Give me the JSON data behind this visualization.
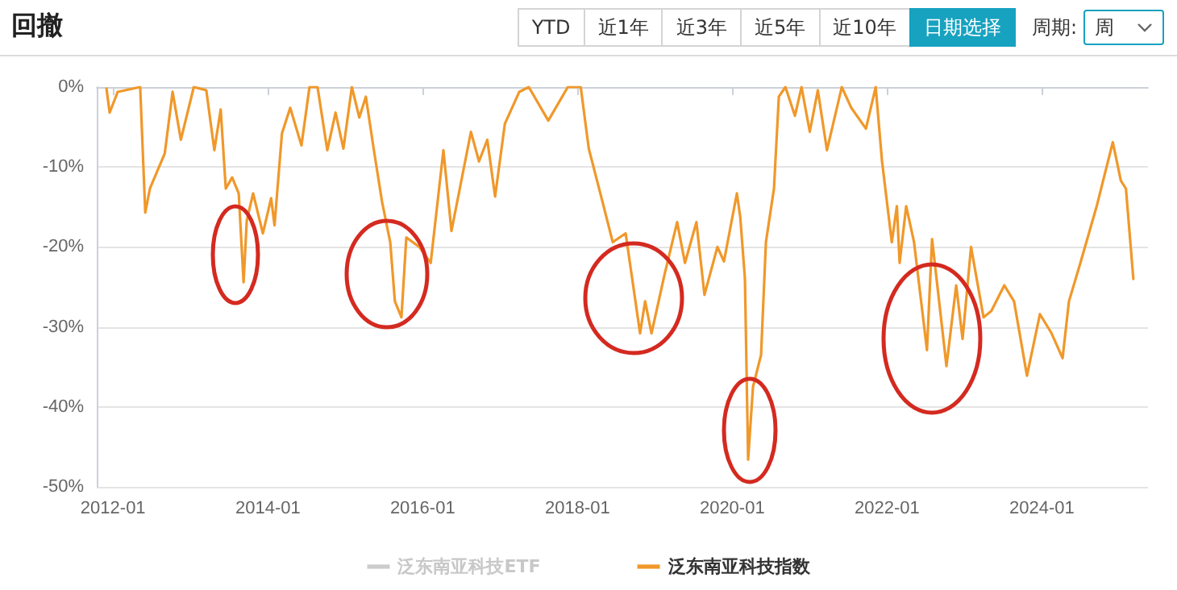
{
  "chart_data": {
    "type": "line",
    "title": "回撤",
    "annotations": [
      "YTD",
      "近1年",
      "近3年",
      "近5年",
      "近10年",
      "日期选择",
      "周期:",
      "周"
    ],
    "xlim": [
      "2011-10-16",
      "2025-05-16"
    ],
    "xticks": [
      "2012-01",
      "2014-01",
      "2016-01",
      "2018-01",
      "2020-01",
      "2022-01",
      "2024-01"
    ],
    "ylim": [
      -50,
      0
    ],
    "yticks": [
      {
        "value": -50,
        "label": "-50%"
      },
      {
        "value": -40,
        "label": "-40%"
      },
      {
        "value": -30,
        "label": "-30%"
      },
      {
        "value": -20,
        "label": "-20%"
      },
      {
        "value": -10,
        "label": "-10%"
      },
      {
        "value": 0,
        "label": "0%"
      }
    ],
    "grid": "y",
    "legend": "bottom",
    "marker": "none",
    "line_style": "solid",
    "x": [
      "2011-12-01",
      "2011-12-16",
      "2012-01-23",
      "2012-05-08",
      "2012-06-01",
      "2012-06-23",
      "2012-09-01",
      "2012-10-08",
      "2012-11-16",
      "2013-01-16",
      "2013-03-16",
      "2013-04-23",
      "2013-05-23",
      "2013-06-16",
      "2013-07-16",
      "2013-08-16",
      "2013-09-08",
      "2013-09-23",
      "2013-10-23",
      "2013-12-08",
      "2014-01-16",
      "2014-02-01",
      "2014-03-08",
      "2014-04-16",
      "2014-06-08",
      "2014-07-16",
      "2014-08-23",
      "2014-10-08",
      "2014-11-16",
      "2014-12-23",
      "2015-02-01",
      "2015-03-08",
      "2015-04-08",
      "2015-05-16",
      "2015-06-23",
      "2015-08-01",
      "2015-08-23",
      "2015-09-23",
      "2015-10-16",
      "2015-12-16",
      "2016-02-08",
      "2016-04-08",
      "2016-05-16",
      "2016-08-16",
      "2016-09-23",
      "2016-11-01",
      "2016-12-08",
      "2017-01-23",
      "2017-04-01",
      "2017-05-16",
      "2017-08-16",
      "2017-11-16",
      "2018-01-16",
      "2018-02-23",
      "2018-05-08",
      "2018-06-16",
      "2018-08-16",
      "2018-10-23",
      "2018-11-16",
      "2018-12-16",
      "2019-02-16",
      "2019-04-16",
      "2019-05-23",
      "2019-07-16",
      "2019-08-23",
      "2019-10-23",
      "2019-11-23",
      "2020-01-23",
      "2020-02-08",
      "2020-03-01",
      "2020-03-16",
      "2020-04-08",
      "2020-05-16",
      "2020-06-08",
      "2020-07-16",
      "2020-08-08",
      "2020-09-08",
      "2020-10-23",
      "2020-11-23",
      "2021-01-01",
      "2021-02-08",
      "2021-03-23",
      "2021-06-01",
      "2021-07-16",
      "2021-09-23",
      "2021-11-08",
      "2021-12-08",
      "2022-01-23",
      "2022-02-16",
      "2022-03-01",
      "2022-04-01",
      "2022-05-08",
      "2022-07-08",
      "2022-08-01",
      "2022-10-08",
      "2022-11-23",
      "2022-12-23",
      "2023-02-01",
      "2023-04-01",
      "2023-05-08",
      "2023-07-08",
      "2023-08-23",
      "2023-10-23",
      "2023-12-23",
      "2024-02-16",
      "2024-04-08",
      "2024-05-08",
      "2024-07-01",
      "2024-09-16",
      "2024-12-01",
      "2025-01-08",
      "2025-02-01",
      "2025-03-08"
    ],
    "series": [
      {
        "name": "泛东南亚科技ETF",
        "color": "#cccccc",
        "values": [
          null,
          null,
          null,
          null,
          null,
          null,
          null,
          null,
          null,
          null,
          null,
          null,
          null,
          null,
          null,
          null,
          null,
          null,
          null,
          null,
          null,
          null,
          null,
          null,
          null,
          null,
          null,
          null,
          null,
          null,
          null,
          null,
          null,
          null,
          null,
          null,
          null,
          null,
          null,
          null,
          null,
          null,
          null,
          null,
          null,
          null,
          null,
          null,
          null,
          null,
          null,
          null,
          null,
          null,
          null,
          null,
          null,
          null,
          null,
          null,
          null,
          null,
          null,
          null,
          null,
          null,
          null,
          null,
          null,
          null,
          null,
          null,
          null,
          null,
          null,
          null,
          null,
          null,
          null,
          null,
          null,
          null,
          null,
          null,
          null,
          null,
          null,
          null,
          null,
          null,
          null,
          null,
          null,
          null,
          null,
          null,
          null,
          null,
          null,
          null,
          null,
          null,
          null,
          null,
          null,
          null,
          null,
          null,
          null,
          null,
          null,
          null,
          null
        ]
      },
      {
        "name": "泛东南亚科技指数",
        "color": "#f0982a",
        "values": [
          -0.2,
          -3.2,
          -0.6,
          0,
          -15.7,
          -12.7,
          -8.3,
          -0.6,
          -6.6,
          0,
          -0.4,
          -7.9,
          -2.8,
          -12.7,
          -11.3,
          -13.3,
          -24.4,
          -16.7,
          -13.3,
          -18.3,
          -13.9,
          -17.3,
          -5.8,
          -2.6,
          -7.3,
          0,
          0,
          -7.9,
          -3.2,
          -7.7,
          0,
          -3.8,
          -1.2,
          -7.9,
          -14.3,
          -19.4,
          -26.8,
          -28.8,
          -18.8,
          -20,
          -22,
          -7.9,
          -18,
          -5.6,
          -9.3,
          -6.6,
          -13.7,
          -4.6,
          -0.6,
          0,
          -4.2,
          0,
          0,
          -7.7,
          -15.3,
          -19.4,
          -18.3,
          -30.8,
          -26.8,
          -30.8,
          -23.4,
          -16.9,
          -22,
          -16.9,
          -26,
          -20,
          -21.8,
          -13.3,
          -16.3,
          -24,
          -46.6,
          -37.5,
          -33.5,
          -19.4,
          -12.7,
          -1.2,
          0,
          -3.6,
          0,
          -5.6,
          -0.4,
          -7.9,
          0,
          -2.6,
          -5.2,
          0,
          -9.3,
          -19.4,
          -14.9,
          -22,
          -14.9,
          -19.4,
          -32.9,
          -19,
          -34.9,
          -24.8,
          -31.5,
          -20,
          -28.8,
          -28,
          -24.8,
          -26.8,
          -36.1,
          -28.4,
          -30.8,
          -33.9,
          -26.8,
          -22,
          -14.9,
          -6.9,
          -11.7,
          -12.7,
          -24
        ]
      }
    ]
  }
}
